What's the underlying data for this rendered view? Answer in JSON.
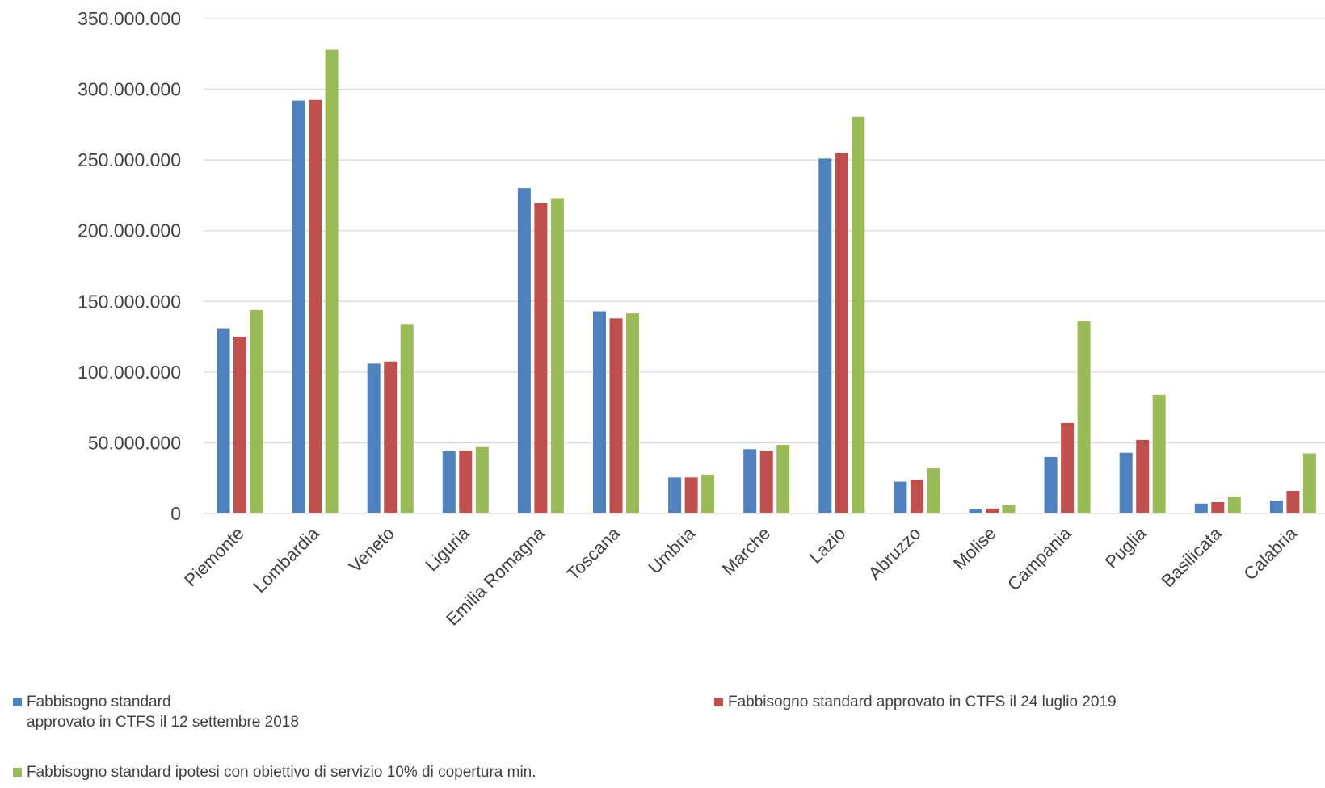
{
  "chart_data": {
    "type": "bar",
    "title": "",
    "xlabel": "",
    "ylabel": "",
    "ylim": [
      0,
      350000000
    ],
    "yticks": [
      0,
      50000000,
      100000000,
      150000000,
      200000000,
      250000000,
      300000000,
      350000000
    ],
    "ytick_labels": [
      "0",
      "50.000.000",
      "100.000.000",
      "150.000.000",
      "200.000.000",
      "250.000.000",
      "300.000.000",
      "350.000.000"
    ],
    "grid": true,
    "legend_position": "bottom",
    "categories": [
      "Piemonte",
      "Lombardia",
      "Veneto",
      "Liguria",
      "Emilia Romagna",
      "Toscana",
      "Umbria",
      "Marche",
      "Lazio",
      "Abruzzo",
      "Molise",
      "Campania",
      "Puglia",
      "Basilicata",
      "Calabria"
    ],
    "series": [
      {
        "name": "Fabbisogno standard\napprovato in CTFS il 12 settembre 2018",
        "color": "#4f81bd",
        "values": [
          131000000,
          292000000,
          106000000,
          44000000,
          230000000,
          143000000,
          25500000,
          45500000,
          251000000,
          22500000,
          3000000,
          40000000,
          43000000,
          7000000,
          9000000
        ]
      },
      {
        "name": "Fabbisogno standard approvato in CTFS il 24 luglio 2019",
        "color": "#c0504d",
        "values": [
          125000000,
          292500000,
          107500000,
          44500000,
          219500000,
          138000000,
          25500000,
          44500000,
          255000000,
          24000000,
          3500000,
          64000000,
          52000000,
          8000000,
          16000000
        ]
      },
      {
        "name": "Fabbisogno standard ipotesi  con obiettivo di servizio 10% di copertura min.",
        "color": "#9bbb59",
        "values": [
          144000000,
          328000000,
          134000000,
          47000000,
          223000000,
          141500000,
          27500000,
          48500000,
          280500000,
          32000000,
          6000000,
          136000000,
          84000000,
          12000000,
          42500000
        ]
      }
    ]
  }
}
